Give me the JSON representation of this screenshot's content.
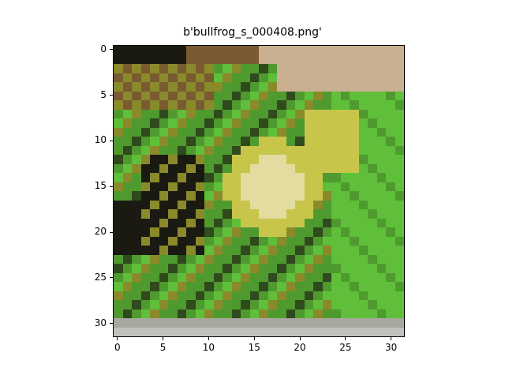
{
  "figure": {
    "title": "b'bullfrog_s_000408.png'",
    "image_size": [
      32,
      32
    ],
    "xticks": [
      "0",
      "5",
      "10",
      "15",
      "20",
      "25",
      "30"
    ],
    "yticks": [
      "0",
      "5",
      "10",
      "15",
      "20",
      "25",
      "30"
    ],
    "palette": {
      "dark": "#1a1a12",
      "darkgreen": "#2f4a1c",
      "green": "#4f9a2e",
      "brightgreen": "#5fbf3a",
      "olive": "#8a8a2a",
      "yellow": "#c8c64a",
      "pale": "#e2dca0",
      "brown": "#7a5a30",
      "tan": "#c8b090",
      "grey": "#a8a8a0",
      "lightgrey": "#c0c0bc"
    }
  }
}
